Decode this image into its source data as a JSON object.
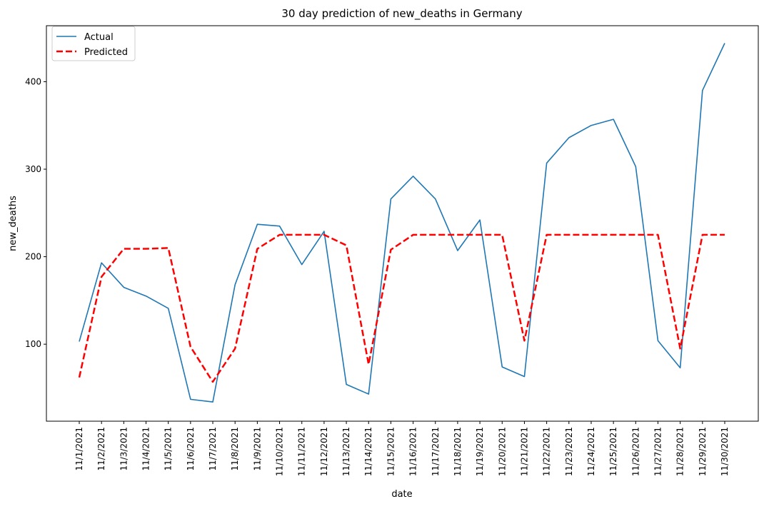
{
  "chart_data": {
    "type": "line",
    "title": "30 day prediction of new_deaths in Germany",
    "xlabel": "date",
    "ylabel": "new_deaths",
    "x": [
      "11/1/2021",
      "11/2/2021",
      "11/3/2021",
      "11/4/2021",
      "11/5/2021",
      "11/6/2021",
      "11/7/2021",
      "11/8/2021",
      "11/9/2021",
      "11/10/2021",
      "11/11/2021",
      "11/12/2021",
      "11/13/2021",
      "11/14/2021",
      "11/15/2021",
      "11/16/2021",
      "11/17/2021",
      "11/18/2021",
      "11/19/2021",
      "11/20/2021",
      "11/21/2021",
      "11/22/2021",
      "11/23/2021",
      "11/24/2021",
      "11/25/2021",
      "11/26/2021",
      "11/27/2021",
      "11/28/2021",
      "11/29/2021",
      "11/30/2021"
    ],
    "ylim": [
      12,
      464
    ],
    "yticks": [
      100,
      200,
      300,
      400
    ],
    "grid": false,
    "legend_position": "top-left",
    "series": [
      {
        "name": "Actual",
        "color": "#1f77b4",
        "style": "solid",
        "values": [
          103,
          193,
          165,
          155,
          141,
          37,
          34,
          168,
          237,
          235,
          191,
          229,
          54,
          43,
          266,
          292,
          266,
          207,
          242,
          74,
          63,
          307,
          336,
          350,
          357,
          303,
          104,
          73,
          390,
          444
        ]
      },
      {
        "name": "Predicted",
        "color": "#ff0000",
        "style": "dashed",
        "values": [
          62,
          177,
          209,
          209,
          210,
          97,
          57,
          95,
          209,
          225,
          225,
          225,
          213,
          77,
          208,
          225,
          225,
          225,
          225,
          225,
          104,
          225,
          225,
          225,
          225,
          225,
          225,
          95,
          225,
          225
        ]
      }
    ]
  }
}
